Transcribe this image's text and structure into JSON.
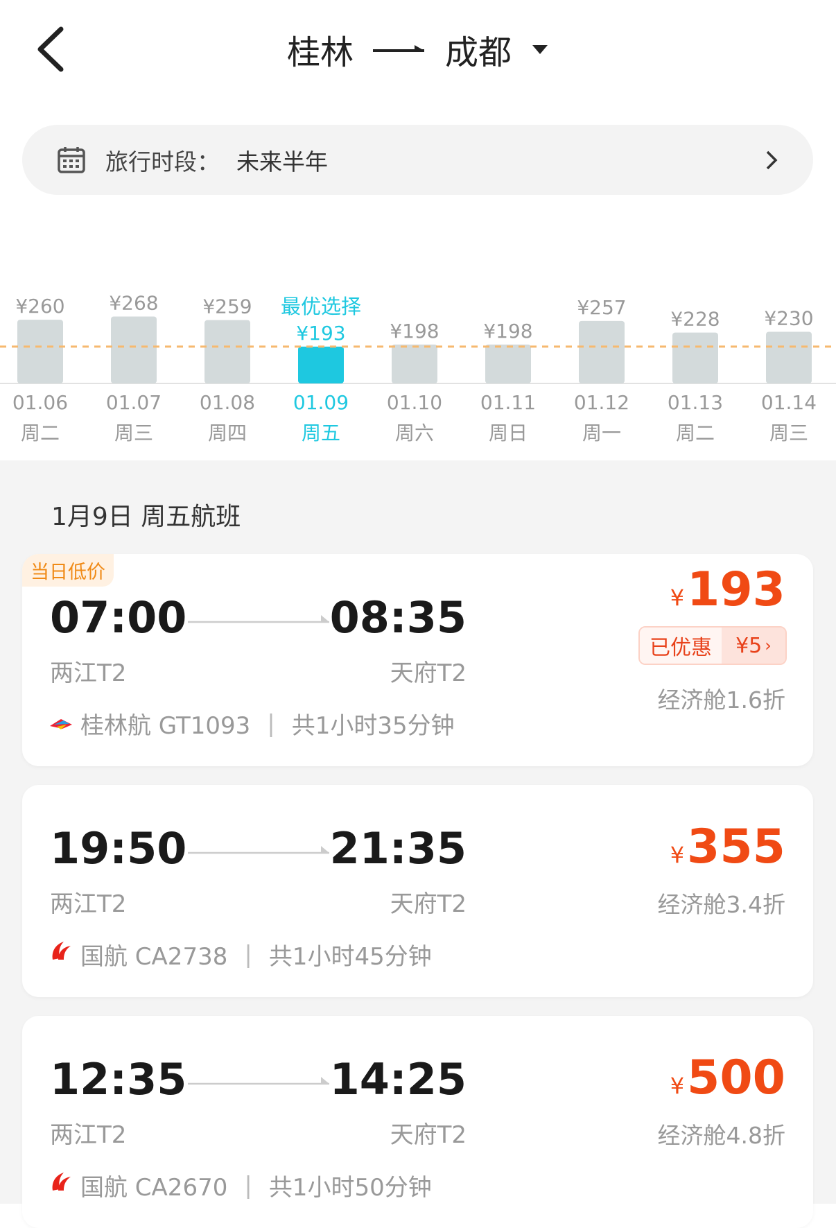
{
  "header": {
    "origin": "桂林",
    "destination": "成都"
  },
  "period": {
    "label": "旅行时段：",
    "value": "未来半年"
  },
  "chart": {
    "best_label": "最优选择",
    "selected_index": 3,
    "reference_price": 193,
    "days": [
      {
        "price": "¥260",
        "value": 260,
        "date": "01.06",
        "weekday": "周二"
      },
      {
        "price": "¥268",
        "value": 268,
        "date": "01.07",
        "weekday": "周三"
      },
      {
        "price": "¥259",
        "value": 259,
        "date": "01.08",
        "weekday": "周四"
      },
      {
        "price": "¥193",
        "value": 193,
        "date": "01.09",
        "weekday": "周五"
      },
      {
        "price": "¥198",
        "value": 198,
        "date": "01.10",
        "weekday": "周六"
      },
      {
        "price": "¥198",
        "value": 198,
        "date": "01.11",
        "weekday": "周日"
      },
      {
        "price": "¥257",
        "value": 257,
        "date": "01.12",
        "weekday": "周一"
      },
      {
        "price": "¥228",
        "value": 228,
        "date": "01.13",
        "weekday": "周二"
      },
      {
        "price": "¥230",
        "value": 230,
        "date": "01.14",
        "weekday": "周三"
      }
    ],
    "colors": {
      "bar": "#d3dadb",
      "selected": "#1ec8e0",
      "line": "#f6b96f"
    }
  },
  "section_title": "1月9日 周五航班",
  "flights": [
    {
      "tag": "当日低价",
      "dep": "07:00",
      "arr": "08:35",
      "dep_term": "两江T2",
      "arr_term": "天府T2",
      "airline": "桂林航 GT1093",
      "sep": "|",
      "duration": "共1小时35分钟",
      "currency": "¥",
      "price": "193",
      "discount_label": "已优惠",
      "discount_value": "¥5",
      "cabin": "经济舱1.6折",
      "logo": "guilin-airlines-logo"
    },
    {
      "dep": "19:50",
      "arr": "21:35",
      "dep_term": "两江T2",
      "arr_term": "天府T2",
      "airline": "国航 CA2738",
      "sep": "|",
      "duration": "共1小时45分钟",
      "currency": "¥",
      "price": "355",
      "cabin": "经济舱3.4折",
      "logo": "air-china-logo"
    },
    {
      "dep": "12:35",
      "arr": "14:25",
      "dep_term": "两江T2",
      "arr_term": "天府T2",
      "airline": "国航 CA2670",
      "sep": "|",
      "duration": "共1小时50分钟",
      "currency": "¥",
      "price": "500",
      "cabin": "经济舱4.8折",
      "logo": "air-china-logo"
    }
  ]
}
